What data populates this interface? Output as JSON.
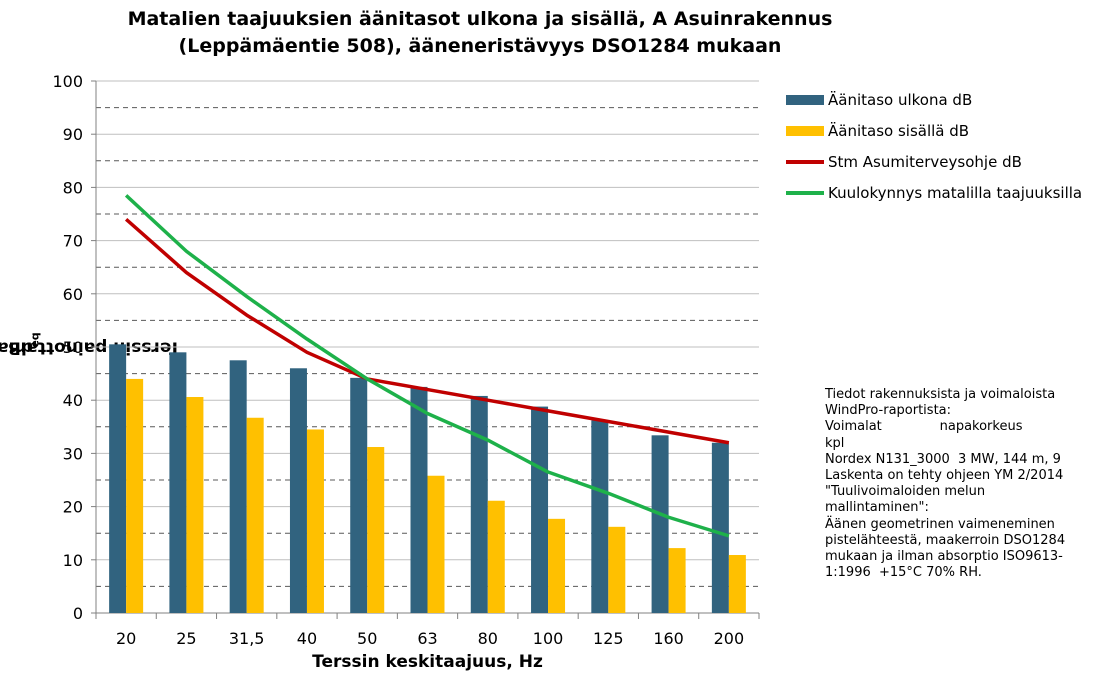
{
  "chart_data": {
    "type": "bar",
    "title": [
      "Matalien taajuuksien äänitasot ulkona ja sisällä, A Asuinrakennus",
      "(Leppämäentie 508), ääneneristävyys DSO1284 mukaan"
    ],
    "xlabel": "Terssin keskitaajuus, Hz",
    "ylabel": {
      "main": "Terssin painottamaton äänitaso L",
      "sub": "eq",
      "unit": " dB"
    },
    "ylim": [
      0,
      100
    ],
    "yticks": [
      0,
      10,
      20,
      30,
      40,
      50,
      60,
      70,
      80,
      90,
      100
    ],
    "grid": "dashed horizontal lines at every 5 dB",
    "legend_position": "right",
    "categories": [
      "20",
      "25",
      "31,5",
      "40",
      "50",
      "63",
      "80",
      "100",
      "125",
      "160",
      "200"
    ],
    "series": [
      {
        "name": "Äänitaso ulkona dB",
        "type": "bar",
        "color": "#31637f",
        "values": [
          50.5,
          49.0,
          47.5,
          46.0,
          44.2,
          42.5,
          40.8,
          38.8,
          36.2,
          33.4,
          32.0
        ]
      },
      {
        "name": "Äänitaso sisällä dB",
        "type": "bar",
        "color": "#ffc000",
        "values": [
          44.0,
          40.6,
          36.7,
          34.5,
          31.2,
          25.8,
          21.1,
          17.7,
          16.2,
          12.2,
          10.9
        ]
      },
      {
        "name": "Stm Asumiterveysohje dB",
        "type": "line",
        "color": "#c00000",
        "values": [
          74,
          64,
          56,
          49,
          44,
          42,
          40,
          38,
          36,
          34,
          32
        ]
      },
      {
        "name": "Kuulokynnys matalilla taajuuksilla",
        "type": "line",
        "color": "#1eb14a",
        "values": [
          78.5,
          68,
          59.5,
          51.5,
          44,
          37.5,
          32.5,
          26.5,
          22.5,
          18,
          14.5
        ]
      }
    ]
  },
  "info_text": [
    "Tiedot rakennuksista ja voimaloista",
    "WindPro-raportista:",
    "Voimalat              napakorkeus",
    "kpl",
    "Nordex N131_3000  3 MW, 144 m, 9",
    "Laskenta on tehty ohjeen YM 2/2014",
    "\"Tuulivoimaloiden melun",
    "mallintaminen\":",
    "Äänen geometrinen vaimeneminen",
    "pistelähteestä, maakerroin DSO1284",
    "mukaan ja ilman absorptio ISO9613-",
    "1:1996  +15°C 70% RH."
  ]
}
